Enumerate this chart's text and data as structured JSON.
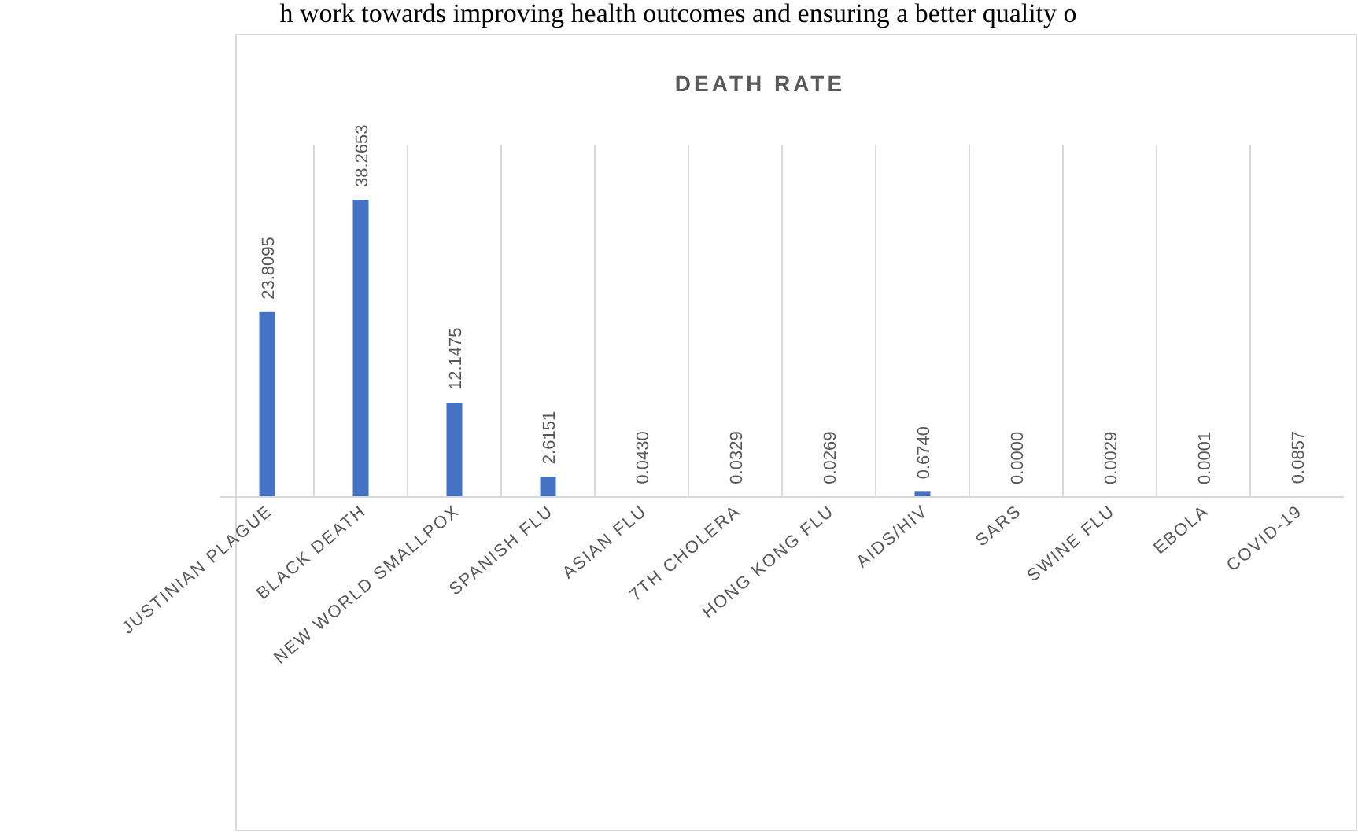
{
  "chart_data": {
    "type": "bar",
    "title": "DEATH RATE",
    "annotations": [
      "h work towards improving health outcomes and ensuring a better quality o"
    ],
    "categories": [
      "JUSTINIAN PLAGUE",
      "BLACK DEATH",
      "NEW WORLD SMALLPOX",
      "SPANISH FLU",
      "ASIAN FLU",
      "7TH CHOLERA",
      "HONG KONG FLU",
      "AIDS/HIV",
      "SARS",
      "SWINE FLU",
      "EBOLA",
      "COVID-19"
    ],
    "values": [
      23.8095,
      38.2653,
      12.1475,
      2.6151,
      0.043,
      0.0329,
      0.0269,
      0.674,
      0.0,
      0.0029,
      0.0001,
      0.0857
    ],
    "value_labels": [
      "23.8095",
      "38.2653",
      "12.1475",
      "2.6151",
      "0.0430",
      "0.0329",
      "0.0269",
      "0.6740",
      "0.0000",
      "0.0029",
      "0.0001",
      "0.0857"
    ],
    "color": "#4472c4",
    "grid": "x"
  }
}
